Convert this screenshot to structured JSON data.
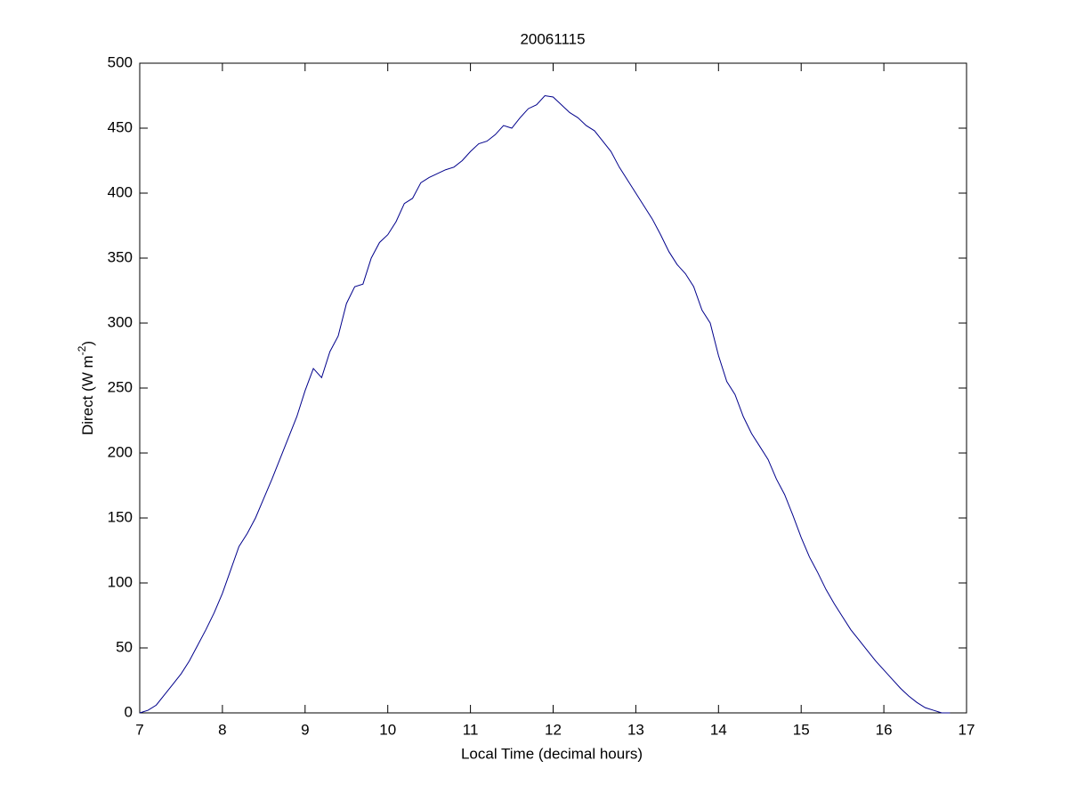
{
  "chart_data": {
    "type": "line",
    "title": "20061115",
    "xlabel": "Local Time (decimal hours)",
    "ylabel": [
      "Direct (W m",
      "-2",
      ")"
    ],
    "xlim": [
      7,
      17
    ],
    "xticks": [
      7,
      8,
      9,
      10,
      11,
      12,
      13,
      14,
      15,
      16,
      17
    ],
    "ylim": [
      0,
      500
    ],
    "yticks": [
      0,
      50,
      100,
      150,
      200,
      250,
      300,
      350,
      400,
      450,
      500
    ],
    "grid": false,
    "x": [
      7.0,
      7.1,
      7.2,
      7.3,
      7.4,
      7.5,
      7.6,
      7.7,
      7.8,
      7.9,
      8.0,
      8.1,
      8.2,
      8.3,
      8.4,
      8.5,
      8.6,
      8.7,
      8.8,
      8.9,
      9.0,
      9.1,
      9.2,
      9.3,
      9.4,
      9.5,
      9.6,
      9.7,
      9.8,
      9.9,
      10.0,
      10.1,
      10.2,
      10.3,
      10.4,
      10.5,
      10.6,
      10.7,
      10.8,
      10.9,
      11.0,
      11.1,
      11.2,
      11.3,
      11.4,
      11.5,
      11.6,
      11.7,
      11.8,
      11.9,
      12.0,
      12.1,
      12.2,
      12.3,
      12.4,
      12.5,
      12.6,
      12.7,
      12.8,
      12.9,
      13.0,
      13.1,
      13.2,
      13.3,
      13.4,
      13.5,
      13.6,
      13.7,
      13.8,
      13.9,
      14.0,
      14.1,
      14.2,
      14.3,
      14.4,
      14.5,
      14.6,
      14.7,
      14.8,
      14.9,
      15.0,
      15.1,
      15.2,
      15.3,
      15.4,
      15.5,
      15.6,
      15.7,
      15.8,
      15.9,
      16.0,
      16.1,
      16.2,
      16.3,
      16.4,
      16.5,
      16.6,
      16.7,
      16.8
    ],
    "series": [
      {
        "color": "#00008b",
        "values": [
          0,
          2,
          6,
          14,
          22,
          30,
          40,
          52,
          64,
          77,
          92,
          110,
          128,
          138,
          150,
          165,
          180,
          196,
          212,
          228,
          248,
          265,
          258,
          278,
          290,
          315,
          328,
          330,
          350,
          362,
          368,
          378,
          392,
          396,
          408,
          412,
          415,
          418,
          420,
          425,
          432,
          438,
          440,
          445,
          452,
          450,
          458,
          465,
          468,
          475,
          474,
          468,
          462,
          458,
          452,
          448,
          440,
          432,
          420,
          410,
          400,
          390,
          380,
          368,
          355,
          345,
          338,
          328,
          310,
          300,
          275,
          255,
          245,
          228,
          215,
          205,
          195,
          180,
          168,
          152,
          135,
          120,
          108,
          95,
          84,
          74,
          64,
          56,
          48,
          40,
          33,
          26,
          19,
          13,
          8,
          4,
          2,
          0,
          0
        ]
      }
    ]
  }
}
